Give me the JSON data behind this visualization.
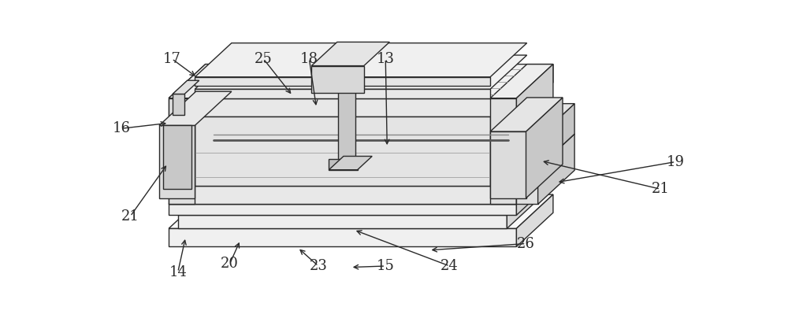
{
  "fig_width": 10.0,
  "fig_height": 4.04,
  "dpi": 100,
  "bg_color": "#ffffff",
  "line_color": "#2a2a2a",
  "line_width": 1.0,
  "label_fontsize": 13
}
